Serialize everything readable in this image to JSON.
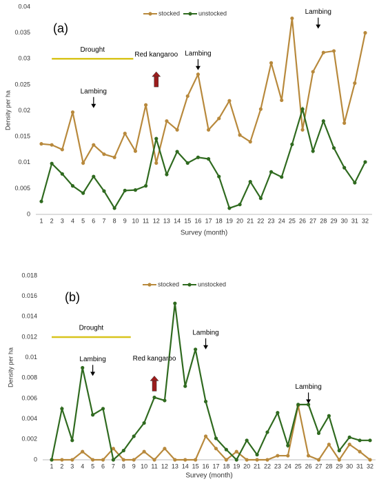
{
  "chart_data": [
    {
      "type": "line",
      "title": "(a)",
      "x_label": "Survey (month)",
      "y_label": "Density per ha",
      "categories": [
        "1",
        "2",
        "3",
        "4",
        "5",
        "6",
        "7",
        "8",
        "9",
        "10",
        "11",
        "12",
        "13",
        "14",
        "15",
        "16",
        "17",
        "18",
        "19",
        "20",
        "21",
        "22",
        "23",
        "24",
        "25",
        "26",
        "27",
        "28",
        "29",
        "30",
        "31",
        "32"
      ],
      "ylim": [
        0,
        0.04
      ],
      "yticks": [
        0,
        0.005,
        0.01,
        0.015,
        0.02,
        0.025,
        0.03,
        0.035,
        0.04
      ],
      "series": [
        {
          "name": "stocked",
          "color": "#b8893c",
          "values": [
            0.0136,
            0.0134,
            0.0125,
            0.0197,
            0.0099,
            0.0134,
            0.0116,
            0.011,
            0.0156,
            0.0122,
            0.0211,
            0.0099,
            0.018,
            0.0163,
            0.0228,
            0.027,
            0.0163,
            0.0185,
            0.0219,
            0.0153,
            0.014,
            0.0203,
            0.0292,
            0.022,
            0.0378,
            0.0163,
            0.0275,
            0.0312,
            0.0315,
            0.0176,
            0.0253,
            0.035
          ]
        },
        {
          "name": "unstocked",
          "color": "#2f6a1f",
          "values": [
            0.0025,
            0.0098,
            0.0078,
            0.0055,
            0.0041,
            0.0073,
            0.0045,
            0.0012,
            0.0046,
            0.0047,
            0.0055,
            0.0146,
            0.0077,
            0.0121,
            0.0099,
            0.011,
            0.0107,
            0.0073,
            0.0012,
            0.0019,
            0.0063,
            0.0031,
            0.0082,
            0.0072,
            0.0135,
            0.0203,
            0.0122,
            0.018,
            0.0128,
            0.009,
            0.0061,
            0.0101
          ]
        }
      ],
      "drought": {
        "text": "Drought",
        "x": [
          2,
          9.8
        ],
        "y": 0.03,
        "color": "#d8c41c"
      },
      "events": [
        {
          "text": "Lambing",
          "x": 6,
          "y": 0.0205,
          "arrow": "down",
          "color": "#000000"
        },
        {
          "text": "Red kangaroo",
          "x": 12,
          "y": 0.0275,
          "arrow": "up",
          "color": "#9b1c1c"
        },
        {
          "text": "Lambing",
          "x": 16,
          "y": 0.0278,
          "arrow": "down",
          "color": "#000000"
        },
        {
          "text": "Lambing",
          "x": 27.5,
          "y": 0.0358,
          "arrow": "down",
          "color": "#000000"
        }
      ]
    },
    {
      "type": "line",
      "title": "(b)",
      "x_label": "Survey (month)",
      "y_label": "Density per ha",
      "categories": [
        "1",
        "2",
        "3",
        "4",
        "5",
        "6",
        "7",
        "8",
        "9",
        "10",
        "11",
        "12",
        "13",
        "14",
        "15",
        "16",
        "17",
        "18",
        "19",
        "20",
        "21",
        "22",
        "23",
        "24",
        "25",
        "26",
        "27",
        "28",
        "29",
        "30",
        "31",
        "32"
      ],
      "ylim": [
        0,
        0.018
      ],
      "yticks": [
        0,
        0.002,
        0.004,
        0.006,
        0.008,
        0.01,
        0.012,
        0.014,
        0.016,
        0.018
      ],
      "series": [
        {
          "name": "stocked",
          "color": "#b8893c",
          "values": [
            0,
            0,
            0,
            0.0008,
            0,
            0,
            0.0011,
            0,
            0,
            0.0008,
            0,
            0.0011,
            0,
            0,
            0,
            0.0023,
            0.0011,
            0,
            0.0008,
            0,
            0,
            0,
            0.0004,
            0.0004,
            0.0053,
            0.0004,
            0,
            0.0015,
            0,
            0.0015,
            0.0008,
            0
          ]
        },
        {
          "name": "unstocked",
          "color": "#2f6a1f",
          "values": [
            0,
            0.005,
            0.0019,
            0.009,
            0.0044,
            0.005,
            0,
            0.0009,
            0.0023,
            0.0036,
            0.0061,
            0.0058,
            0.0153,
            0.0072,
            0.0108,
            0.0057,
            0.0021,
            0.001,
            0,
            0.0019,
            0.0005,
            0.0027,
            0.0046,
            0.0014,
            0.0054,
            0.0054,
            0.0026,
            0.0043,
            0.0009,
            0.0022,
            0.0019,
            0.0019
          ]
        }
      ],
      "drought": {
        "text": "Drought",
        "x": [
          1,
          8.7
        ],
        "y": 0.012,
        "color": "#d8c41c"
      },
      "events": [
        {
          "text": "Lambing",
          "x": 5,
          "y": 0.0082,
          "arrow": "down",
          "color": "#000000"
        },
        {
          "text": "Red kangaroo",
          "x": 11,
          "y": 0.0082,
          "arrow": "up",
          "color": "#9b1c1c"
        },
        {
          "text": "Lambing",
          "x": 16,
          "y": 0.0108,
          "arrow": "down",
          "color": "#000000"
        },
        {
          "text": "Lambing",
          "x": 26,
          "y": 0.0055,
          "arrow": "down",
          "color": "#000000"
        }
      ]
    }
  ]
}
